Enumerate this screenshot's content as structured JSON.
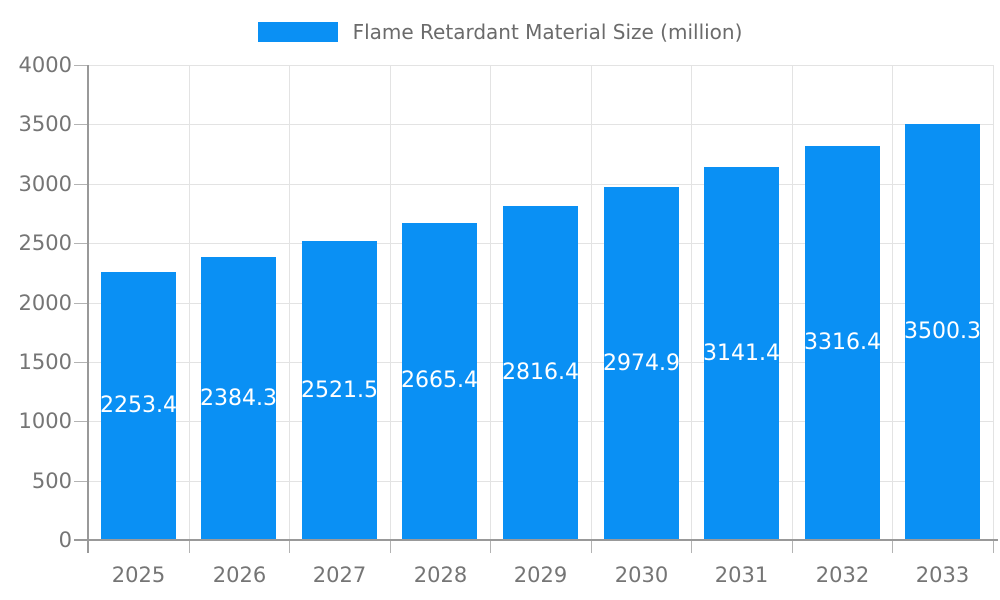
{
  "legend": {
    "label": "Flame Retardant Material Size (million)",
    "swatch_color": "#0a90f4"
  },
  "chart_data": {
    "type": "bar",
    "title": "Flame Retardant Material Size (million)",
    "series_name": "Flame Retardant Material Size (million)",
    "categories": [
      "2025",
      "2026",
      "2027",
      "2028",
      "2029",
      "2030",
      "2031",
      "2032",
      "2033"
    ],
    "values": [
      2253.4,
      2384.3,
      2521.5,
      2665.4,
      2816.4,
      2974.9,
      3141.4,
      3316.4,
      3500.3
    ],
    "value_labels": [
      "2253.4",
      "2384.3",
      "2521.5",
      "2665.4",
      "2816.4",
      "2974.9",
      "3141.4",
      "3316.4",
      "3500.3"
    ],
    "xlabel": "",
    "ylabel": "",
    "ylim": [
      0,
      4000
    ],
    "yticks": [
      0,
      500,
      1000,
      1500,
      2000,
      2500,
      3000,
      3500,
      4000
    ],
    "grid": true,
    "legend_position": "top-center",
    "colors": {
      "bar": "#0a90f4",
      "value_label": "#ffffff",
      "axis": "#999999",
      "gridline": "#e3e3e3",
      "tick": "#b3b3b3",
      "tick_label": "#757575",
      "legend_text": "#6b6b6b"
    }
  }
}
